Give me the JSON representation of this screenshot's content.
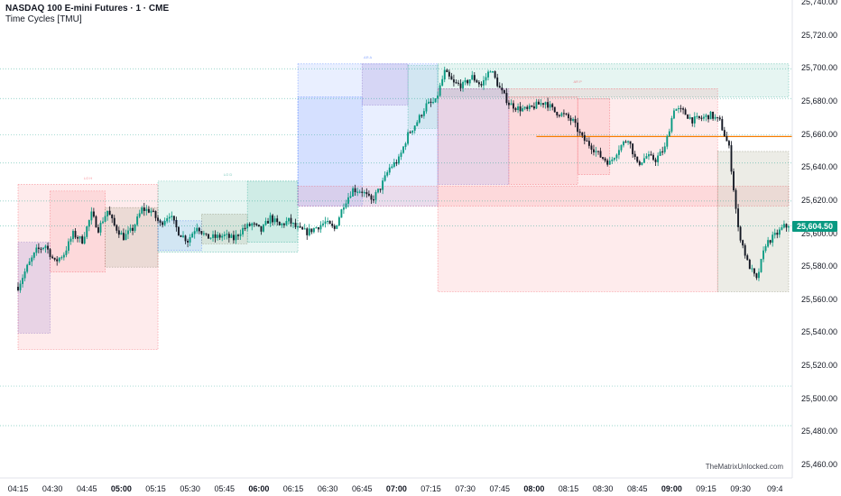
{
  "header": {
    "title": "NASDAQ 100 E-mini Futures · 1 · CME",
    "indicator": "Time Cycles [TMU]"
  },
  "watermark": "TheMatrixUnlocked.com",
  "last_price": "25,604.50",
  "colors": {
    "up": "#089981",
    "down": "#131722",
    "blue_zone": "#2962ff",
    "red_zone": "#f23645",
    "green_zone": "#089981",
    "purple_zone": "#9c27b0",
    "level_line": "#f57c00"
  },
  "chart_data": {
    "type": "candlestick",
    "ylim": [
      25460,
      25740
    ],
    "y_ticks": [
      "25,740.00",
      "25,720.00",
      "25,700.00",
      "25,680.00",
      "25,660.00",
      "25,640.00",
      "25,620.00",
      "25,600.00",
      "25,580.00",
      "25,560.00",
      "25,540.00",
      "25,520.00",
      "25,500.00",
      "25,480.00",
      "25,460.00"
    ],
    "x_ticks": [
      {
        "label": "04:15",
        "bold": false
      },
      {
        "label": "04:30",
        "bold": false
      },
      {
        "label": "04:45",
        "bold": false
      },
      {
        "label": "05:00",
        "bold": true
      },
      {
        "label": "05:15",
        "bold": false
      },
      {
        "label": "05:30",
        "bold": false
      },
      {
        "label": "05:45",
        "bold": false
      },
      {
        "label": "06:00",
        "bold": true
      },
      {
        "label": "06:15",
        "bold": false
      },
      {
        "label": "06:30",
        "bold": false
      },
      {
        "label": "06:45",
        "bold": false
      },
      {
        "label": "07:00",
        "bold": true
      },
      {
        "label": "07:15",
        "bold": false
      },
      {
        "label": "07:30",
        "bold": false
      },
      {
        "label": "07:45",
        "bold": false
      },
      {
        "label": "08:00",
        "bold": true
      },
      {
        "label": "08:15",
        "bold": false
      },
      {
        "label": "08:30",
        "bold": false
      },
      {
        "label": "08:45",
        "bold": false
      },
      {
        "label": "09:00",
        "bold": true
      },
      {
        "label": "09:15",
        "bold": false
      },
      {
        "label": "09:30",
        "bold": false
      },
      {
        "label": "09:4",
        "bold": false
      }
    ],
    "x_start_min": 250,
    "x_end_min": 586,
    "close_path": [
      [
        250,
        25568
      ],
      [
        254,
        25580
      ],
      [
        258,
        25590
      ],
      [
        262,
        25593
      ],
      [
        266,
        25583
      ],
      [
        270,
        25588
      ],
      [
        274,
        25600
      ],
      [
        278,
        25596
      ],
      [
        282,
        25612
      ],
      [
        285,
        25603
      ],
      [
        289,
        25614
      ],
      [
        292,
        25605
      ],
      [
        296,
        25598
      ],
      [
        300,
        25603
      ],
      [
        304,
        25615
      ],
      [
        308,
        25614
      ],
      [
        312,
        25606
      ],
      [
        316,
        25612
      ],
      [
        320,
        25601
      ],
      [
        324,
        25596
      ],
      [
        328,
        25605
      ],
      [
        332,
        25598
      ],
      [
        336,
        25598
      ],
      [
        340,
        25599
      ],
      [
        344,
        25597
      ],
      [
        348,
        25603
      ],
      [
        352,
        25606
      ],
      [
        356,
        25602
      ],
      [
        360,
        25610
      ],
      [
        364,
        25605
      ],
      [
        368,
        25608
      ],
      [
        372,
        25603
      ],
      [
        376,
        25601
      ],
      [
        380,
        25604
      ],
      [
        384,
        25607
      ],
      [
        388,
        25603
      ],
      [
        392,
        25618
      ],
      [
        396,
        25627
      ],
      [
        400,
        25626
      ],
      [
        404,
        25620
      ],
      [
        408,
        25628
      ],
      [
        412,
        25640
      ],
      [
        416,
        25645
      ],
      [
        420,
        25660
      ],
      [
        424,
        25668
      ],
      [
        428,
        25678
      ],
      [
        432,
        25680
      ],
      [
        436,
        25698
      ],
      [
        440,
        25691
      ],
      [
        444,
        25690
      ],
      [
        448,
        25695
      ],
      [
        452,
        25690
      ],
      [
        456,
        25700
      ],
      [
        460,
        25688
      ],
      [
        464,
        25679
      ],
      [
        468,
        25676
      ],
      [
        472,
        25675
      ],
      [
        476,
        25678
      ],
      [
        480,
        25680
      ],
      [
        484,
        25674
      ],
      [
        488,
        25672
      ],
      [
        492,
        25668
      ],
      [
        496,
        25658
      ],
      [
        500,
        25653
      ],
      [
        504,
        25647
      ],
      [
        508,
        25643
      ],
      [
        512,
        25652
      ],
      [
        516,
        25658
      ],
      [
        520,
        25642
      ],
      [
        524,
        25647
      ],
      [
        528,
        25645
      ],
      [
        532,
        25652
      ],
      [
        536,
        25676
      ],
      [
        540,
        25674
      ],
      [
        544,
        25669
      ],
      [
        548,
        25670
      ],
      [
        552,
        25672
      ],
      [
        556,
        25668
      ],
      [
        560,
        25652
      ],
      [
        564,
        25603
      ],
      [
        568,
        25583
      ],
      [
        572,
        25572
      ],
      [
        576,
        25594
      ],
      [
        580,
        25599
      ],
      [
        584,
        25604.5
      ]
    ],
    "last_price": 25604.5,
    "dotted_levels": [
      25700,
      25682,
      25660,
      25643,
      25620,
      25605,
      25508,
      25484
    ],
    "solid_level": {
      "price": 25659,
      "from": 476,
      "to": 586
    },
    "zones": [
      {
        "x1": 250,
        "x2": 311,
        "y1": 25530,
        "y2": 25630,
        "color": "red",
        "label": "LO H"
      },
      {
        "x1": 250,
        "x2": 264,
        "y1": 25540,
        "y2": 25595,
        "color": "purple"
      },
      {
        "x1": 264,
        "x2": 288,
        "y1": 25577,
        "y2": 25626,
        "color": "red"
      },
      {
        "x1": 288,
        "x2": 311,
        "y1": 25580,
        "y2": 25616,
        "color": "olive"
      },
      {
        "x1": 311,
        "x2": 372,
        "y1": 25589,
        "y2": 25632,
        "color": "green",
        "label": "LO D"
      },
      {
        "x1": 311,
        "x2": 330,
        "y1": 25590,
        "y2": 25608,
        "color": "blue"
      },
      {
        "x1": 330,
        "x2": 350,
        "y1": 25594,
        "y2": 25612,
        "color": "olive"
      },
      {
        "x1": 350,
        "x2": 372,
        "y1": 25595,
        "y2": 25632,
        "color": "green"
      },
      {
        "x1": 372,
        "x2": 433,
        "y1": 25617,
        "y2": 25703,
        "color": "blue",
        "label": "AR A"
      },
      {
        "x1": 372,
        "x2": 400,
        "y1": 25617,
        "y2": 25683,
        "color": "blue"
      },
      {
        "x1": 400,
        "x2": 420,
        "y1": 25678,
        "y2": 25703,
        "color": "purple"
      },
      {
        "x1": 420,
        "x2": 433,
        "y1": 25664,
        "y2": 25702,
        "color": "green"
      },
      {
        "x1": 372,
        "x2": 586,
        "y1": 25617,
        "y2": 25629,
        "color": "red"
      },
      {
        "x1": 433,
        "x2": 586,
        "y1": 25683,
        "y2": 25703,
        "color": "green"
      },
      {
        "x1": 433,
        "x2": 555,
        "y1": 25565,
        "y2": 25688,
        "color": "red",
        "label": "AR P"
      },
      {
        "x1": 433,
        "x2": 464,
        "y1": 25630,
        "y2": 25688,
        "color": "purple"
      },
      {
        "x1": 464,
        "x2": 494,
        "y1": 25630,
        "y2": 25683,
        "color": "red"
      },
      {
        "x1": 494,
        "x2": 508,
        "y1": 25636,
        "y2": 25682,
        "color": "red"
      },
      {
        "x1": 555,
        "x2": 586,
        "y1": 25565,
        "y2": 25650,
        "color": "olive"
      }
    ]
  }
}
